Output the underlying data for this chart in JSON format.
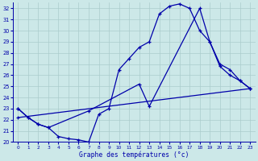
{
  "xlabel": "Graphe des températures (°c)",
  "bg_color": "#cce8e8",
  "grid_color": "#aacccc",
  "line_color": "#0000aa",
  "ylim": [
    20,
    32.5
  ],
  "xlim": [
    -0.5,
    23.5
  ],
  "yticks": [
    20,
    21,
    22,
    23,
    24,
    25,
    26,
    27,
    28,
    29,
    30,
    31,
    32
  ],
  "xticks": [
    0,
    1,
    2,
    3,
    4,
    5,
    6,
    7,
    8,
    9,
    10,
    11,
    12,
    13,
    14,
    15,
    16,
    17,
    18,
    19,
    20,
    21,
    22,
    23
  ],
  "line1_x": [
    0,
    1,
    2,
    3,
    4,
    5,
    6,
    7,
    8,
    9,
    10,
    11,
    12,
    13,
    14,
    15,
    16,
    17,
    18,
    19,
    20,
    21,
    22,
    23
  ],
  "line1_y": [
    23.0,
    22.2,
    21.6,
    21.3,
    20.5,
    20.3,
    20.2,
    20.0,
    22.5,
    23.0,
    26.5,
    27.5,
    28.5,
    29.0,
    31.5,
    32.2,
    32.4,
    32.0,
    30.0,
    29.0,
    26.8,
    26.0,
    25.5,
    24.8
  ],
  "line2_x": [
    0,
    1,
    2,
    3,
    7,
    12,
    13,
    18,
    19,
    20,
    21,
    22,
    23
  ],
  "line2_y": [
    23.0,
    22.2,
    21.6,
    21.3,
    22.8,
    25.2,
    23.2,
    32.0,
    29.0,
    27.0,
    26.5,
    25.5,
    24.8
  ],
  "line3_x": [
    0,
    23
  ],
  "line3_y": [
    22.2,
    24.8
  ]
}
